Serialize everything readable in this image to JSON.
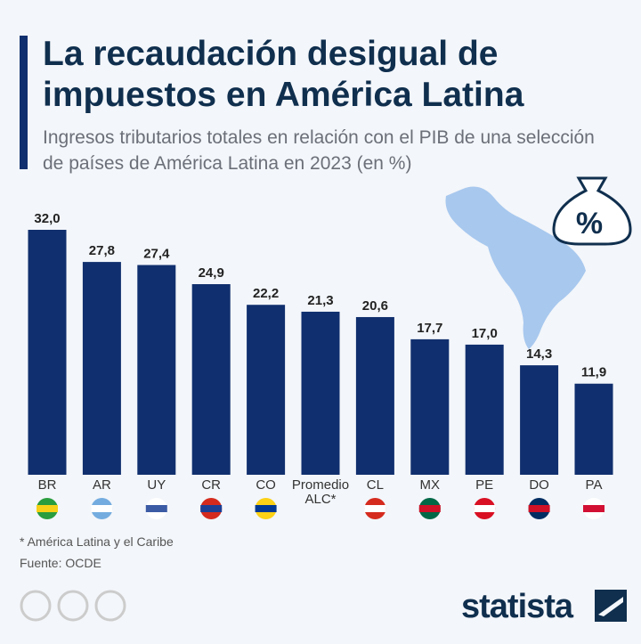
{
  "chart_data": {
    "type": "bar",
    "title": "La recaudación desigual de impuestos en América Latina",
    "subtitle": "Ingresos tributarios totales en relación con el PIB de una selección de países de América Latina en 2023 (en %)",
    "categories": [
      "BR",
      "AR",
      "UY",
      "CR",
      "CO",
      "Promedio ALC*",
      "CL",
      "MX",
      "PE",
      "DO",
      "PA"
    ],
    "values": [
      32.0,
      27.8,
      27.4,
      24.9,
      22.2,
      21.3,
      20.6,
      17.7,
      17.0,
      14.3,
      11.9
    ],
    "value_labels": [
      "32,0",
      "27,8",
      "27,4",
      "24,9",
      "22,2",
      "21,3",
      "20,6",
      "17,7",
      "17,0",
      "14,3",
      "11,9"
    ],
    "color": "#102f6e",
    "ylim": [
      0,
      32
    ],
    "footnote": "* América Latina y el Caribe",
    "source": "Fuente: OCDE",
    "brand": "statista"
  }
}
